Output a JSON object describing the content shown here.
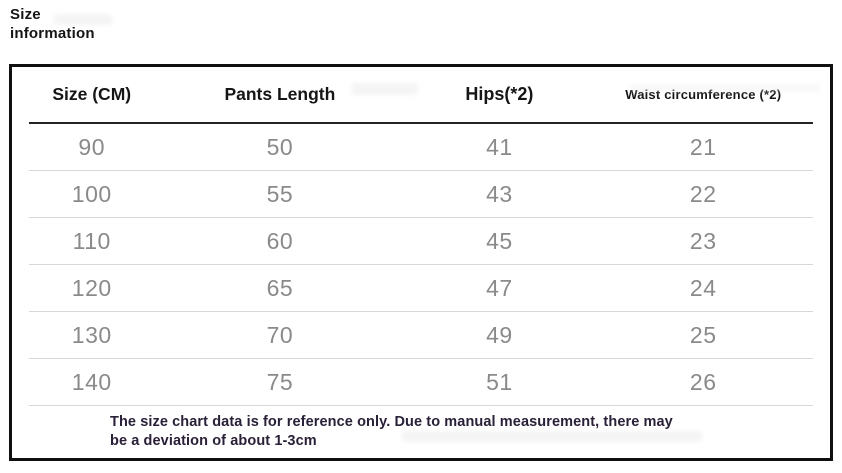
{
  "page": {
    "title_line1": "Size",
    "title_line2": "information"
  },
  "size_table": {
    "headers": [
      "Size (CM)",
      "Pants Length",
      "Hips(*2)",
      "Waist circumference (*2)"
    ],
    "rows": [
      [
        "90",
        "50",
        "41",
        "21"
      ],
      [
        "100",
        "55",
        "43",
        "22"
      ],
      [
        "110",
        "60",
        "45",
        "23"
      ],
      [
        "120",
        "65",
        "47",
        "24"
      ],
      [
        "130",
        "70",
        "49",
        "25"
      ],
      [
        "140",
        "75",
        "51",
        "26"
      ]
    ],
    "note_line1": "The size chart data is for reference only. Due to manual measurement, there may",
    "note_line2": "be a deviation of about 1-3cm"
  },
  "colors": {
    "table_border": "#101010",
    "header_text": "#161616",
    "cell_text": "#8a8a8a",
    "row_divider": "#d7d7d7",
    "note_text": "#2a2037"
  }
}
